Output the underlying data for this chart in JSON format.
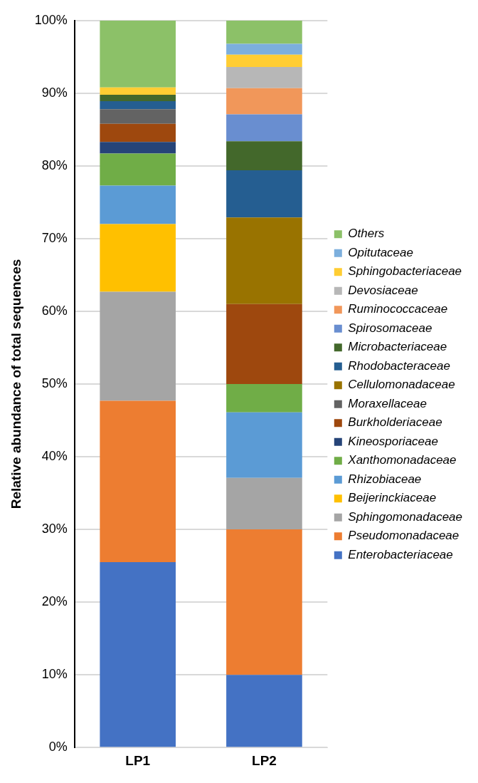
{
  "chart_data": {
    "type": "bar",
    "stacked": true,
    "ylabel": "Relative abundance of total sequences",
    "categories": [
      "LP1",
      "LP2"
    ],
    "ylim": [
      0,
      100
    ],
    "yticks": [
      {
        "value": 0,
        "label": "0%"
      },
      {
        "value": 10,
        "label": "10%"
      },
      {
        "value": 20,
        "label": "20%"
      },
      {
        "value": 30,
        "label": "30%"
      },
      {
        "value": 40,
        "label": "40%"
      },
      {
        "value": 50,
        "label": "50%"
      },
      {
        "value": 60,
        "label": "60%"
      },
      {
        "value": 70,
        "label": "70%"
      },
      {
        "value": 80,
        "label": "80%"
      },
      {
        "value": 90,
        "label": "90%"
      },
      {
        "value": 100,
        "label": "100%"
      }
    ],
    "grid": "y",
    "legend": "right",
    "series": [
      {
        "name": "Enterobacteriaceae",
        "color": "#4472c4",
        "values": [
          25.5,
          10.0
        ]
      },
      {
        "name": "Pseudomonadaceae",
        "color": "#ed7d31",
        "values": [
          22.2,
          20.0
        ]
      },
      {
        "name": "Sphingomonadaceae",
        "color": "#a5a5a5",
        "values": [
          15.0,
          7.1
        ]
      },
      {
        "name": "Beijerinckiaceae",
        "color": "#ffc000",
        "values": [
          9.3,
          0
        ]
      },
      {
        "name": "Rhizobiaceae",
        "color": "#5b9bd5",
        "values": [
          5.3,
          9.0
        ]
      },
      {
        "name": "Xanthomonadaceae",
        "color": "#70ad47",
        "values": [
          4.4,
          3.9
        ]
      },
      {
        "name": "Kineosporiaceae",
        "color": "#264478",
        "values": [
          1.6,
          0
        ]
      },
      {
        "name": "Burkholderiaceae",
        "color": "#9e480e",
        "values": [
          2.5,
          11.0
        ]
      },
      {
        "name": "Moraxellaceae",
        "color": "#636363",
        "values": [
          2.0,
          0
        ]
      },
      {
        "name": "Cellulomonadaceae",
        "color": "#997300",
        "values": [
          0,
          11.9
        ]
      },
      {
        "name": "Rhodobacteraceae",
        "color": "#255e91",
        "values": [
          1.1,
          6.5
        ]
      },
      {
        "name": "Microbacteriaceae",
        "color": "#43682b",
        "values": [
          0.9,
          4.0
        ]
      },
      {
        "name": "Spirosomaceae",
        "color": "#698ed0",
        "values": [
          0,
          3.7
        ]
      },
      {
        "name": "Ruminococcaceae",
        "color": "#f1975a",
        "values": [
          0,
          3.6
        ]
      },
      {
        "name": "Devosiaceae",
        "color": "#b7b7b7",
        "values": [
          0,
          2.9
        ]
      },
      {
        "name": "Sphingobacteriaceae",
        "color": "#ffcd33",
        "values": [
          1.0,
          1.7
        ]
      },
      {
        "name": "Opitutaceae",
        "color": "#7cafdd",
        "values": [
          0,
          1.5
        ]
      },
      {
        "name": "Others",
        "color": "#8cc168",
        "values": [
          9.2,
          3.2
        ]
      }
    ]
  }
}
